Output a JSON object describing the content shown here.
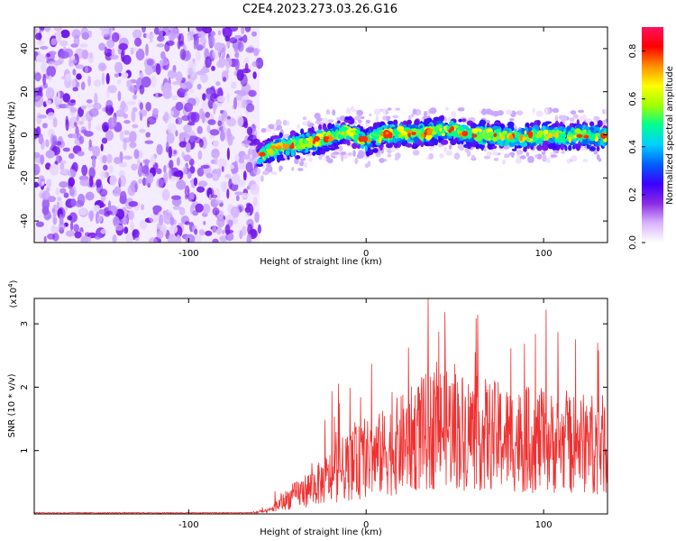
{
  "title": "C2E4.2023.273.03.26.G16",
  "colors": {
    "snr_line": "#f03030",
    "spectrogram_low": "#e8d8ff",
    "spectrogram_mid": "#7a1cf0",
    "colormap": [
      "#ffffff",
      "#e0c8ff",
      "#8a2be2",
      "#3b00ff",
      "#0040ff",
      "#00c8ff",
      "#00ff80",
      "#80ff00",
      "#ffff00",
      "#ff8000",
      "#ff0000",
      "#ff1060"
    ]
  },
  "chart_data": [
    {
      "type": "heatmap",
      "title": "C2E4.2023.273.03.26.G16",
      "xlabel": "Height of straight line (km)",
      "ylabel": "Frequency (Hz)",
      "xlim": [
        -187,
        136
      ],
      "ylim": [
        -50,
        50
      ],
      "x_ticks": [
        -100,
        0,
        100
      ],
      "y_ticks": [
        -40,
        -20,
        0,
        20,
        40
      ],
      "noise_region_x": [
        -187,
        -60
      ],
      "signal_track": {
        "x": [
          -60,
          -50,
          -40,
          -30,
          -20,
          -10,
          0,
          10,
          20,
          30,
          40,
          50,
          60,
          70,
          80,
          90,
          100,
          110,
          120,
          136
        ],
        "frequency": [
          -9,
          -6,
          -5,
          -3,
          -1,
          2,
          -3,
          0,
          1,
          0,
          2,
          2,
          0,
          0,
          -1,
          -1,
          0,
          -1,
          0,
          -1
        ]
      },
      "colorbar": {
        "label": "Normalized spectral amplitude",
        "range": [
          0.0,
          0.9
        ],
        "ticks": [
          "0.0",
          "0.2",
          "0.4",
          "0.6",
          "0.8"
        ]
      }
    },
    {
      "type": "line",
      "xlabel": "Height of straight line (km)",
      "ylabel": "SNR (10 * v/v)",
      "y_multiplier": "(x10",
      "y_multiplier_exp": "4",
      "y_multiplier_close": ")",
      "xlim": [
        -187,
        136
      ],
      "ylim": [
        0,
        3.4
      ],
      "x_ticks": [
        -100,
        0,
        100
      ],
      "y_ticks": [
        1,
        2,
        3
      ],
      "series": [
        {
          "x": [
            -187,
            -150,
            -100,
            -80,
            -65,
            -55,
            -45,
            -35,
            -25,
            -15,
            -5,
            5,
            15,
            25,
            35,
            45,
            55,
            65,
            75,
            85,
            95,
            105,
            115,
            125,
            136
          ],
          "values": [
            0.01,
            0.01,
            0.01,
            0.01,
            0.02,
            0.05,
            0.25,
            0.4,
            0.55,
            0.75,
            0.9,
            1.0,
            1.15,
            1.3,
            1.45,
            1.55,
            1.45,
            1.4,
            1.35,
            1.3,
            1.3,
            1.25,
            1.2,
            1.25,
            1.2
          ]
        }
      ]
    }
  ]
}
